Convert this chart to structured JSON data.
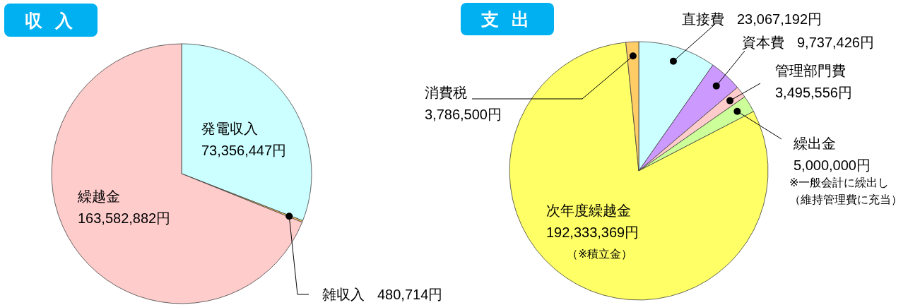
{
  "chart_data": [
    {
      "type": "pie",
      "title": "収 入",
      "categories": [
        "発電収入",
        "雑収入",
        "繰越金"
      ],
      "values": [
        73356447,
        480714,
        163582882
      ],
      "colors": [
        "#ccffff",
        "#ffcc66",
        "#ffcccc"
      ],
      "value_labels": [
        "73,356,447円",
        "480,714円",
        "163,582,882円"
      ]
    },
    {
      "type": "pie",
      "title": "支 出",
      "categories": [
        "直接費",
        "資本費",
        "管理部門費",
        "繰出金",
        "次年度繰越金",
        "消費税"
      ],
      "values": [
        23067192,
        9737426,
        3495556,
        5000000,
        192333369,
        3786500
      ],
      "colors": [
        "#ccffff",
        "#cc99ff",
        "#ffcccc",
        "#ccff99",
        "#ffff66",
        "#ffcc66"
      ],
      "value_labels": [
        "23,067,192円",
        "9,737,426円",
        "3,495,556円",
        "5,000,000円",
        "192,333,369円",
        "3,786,500円"
      ],
      "annotations": [
        "※一般会計に繰出し",
        "（維持管理費に充当）",
        "（※積立金）"
      ]
    }
  ]
}
